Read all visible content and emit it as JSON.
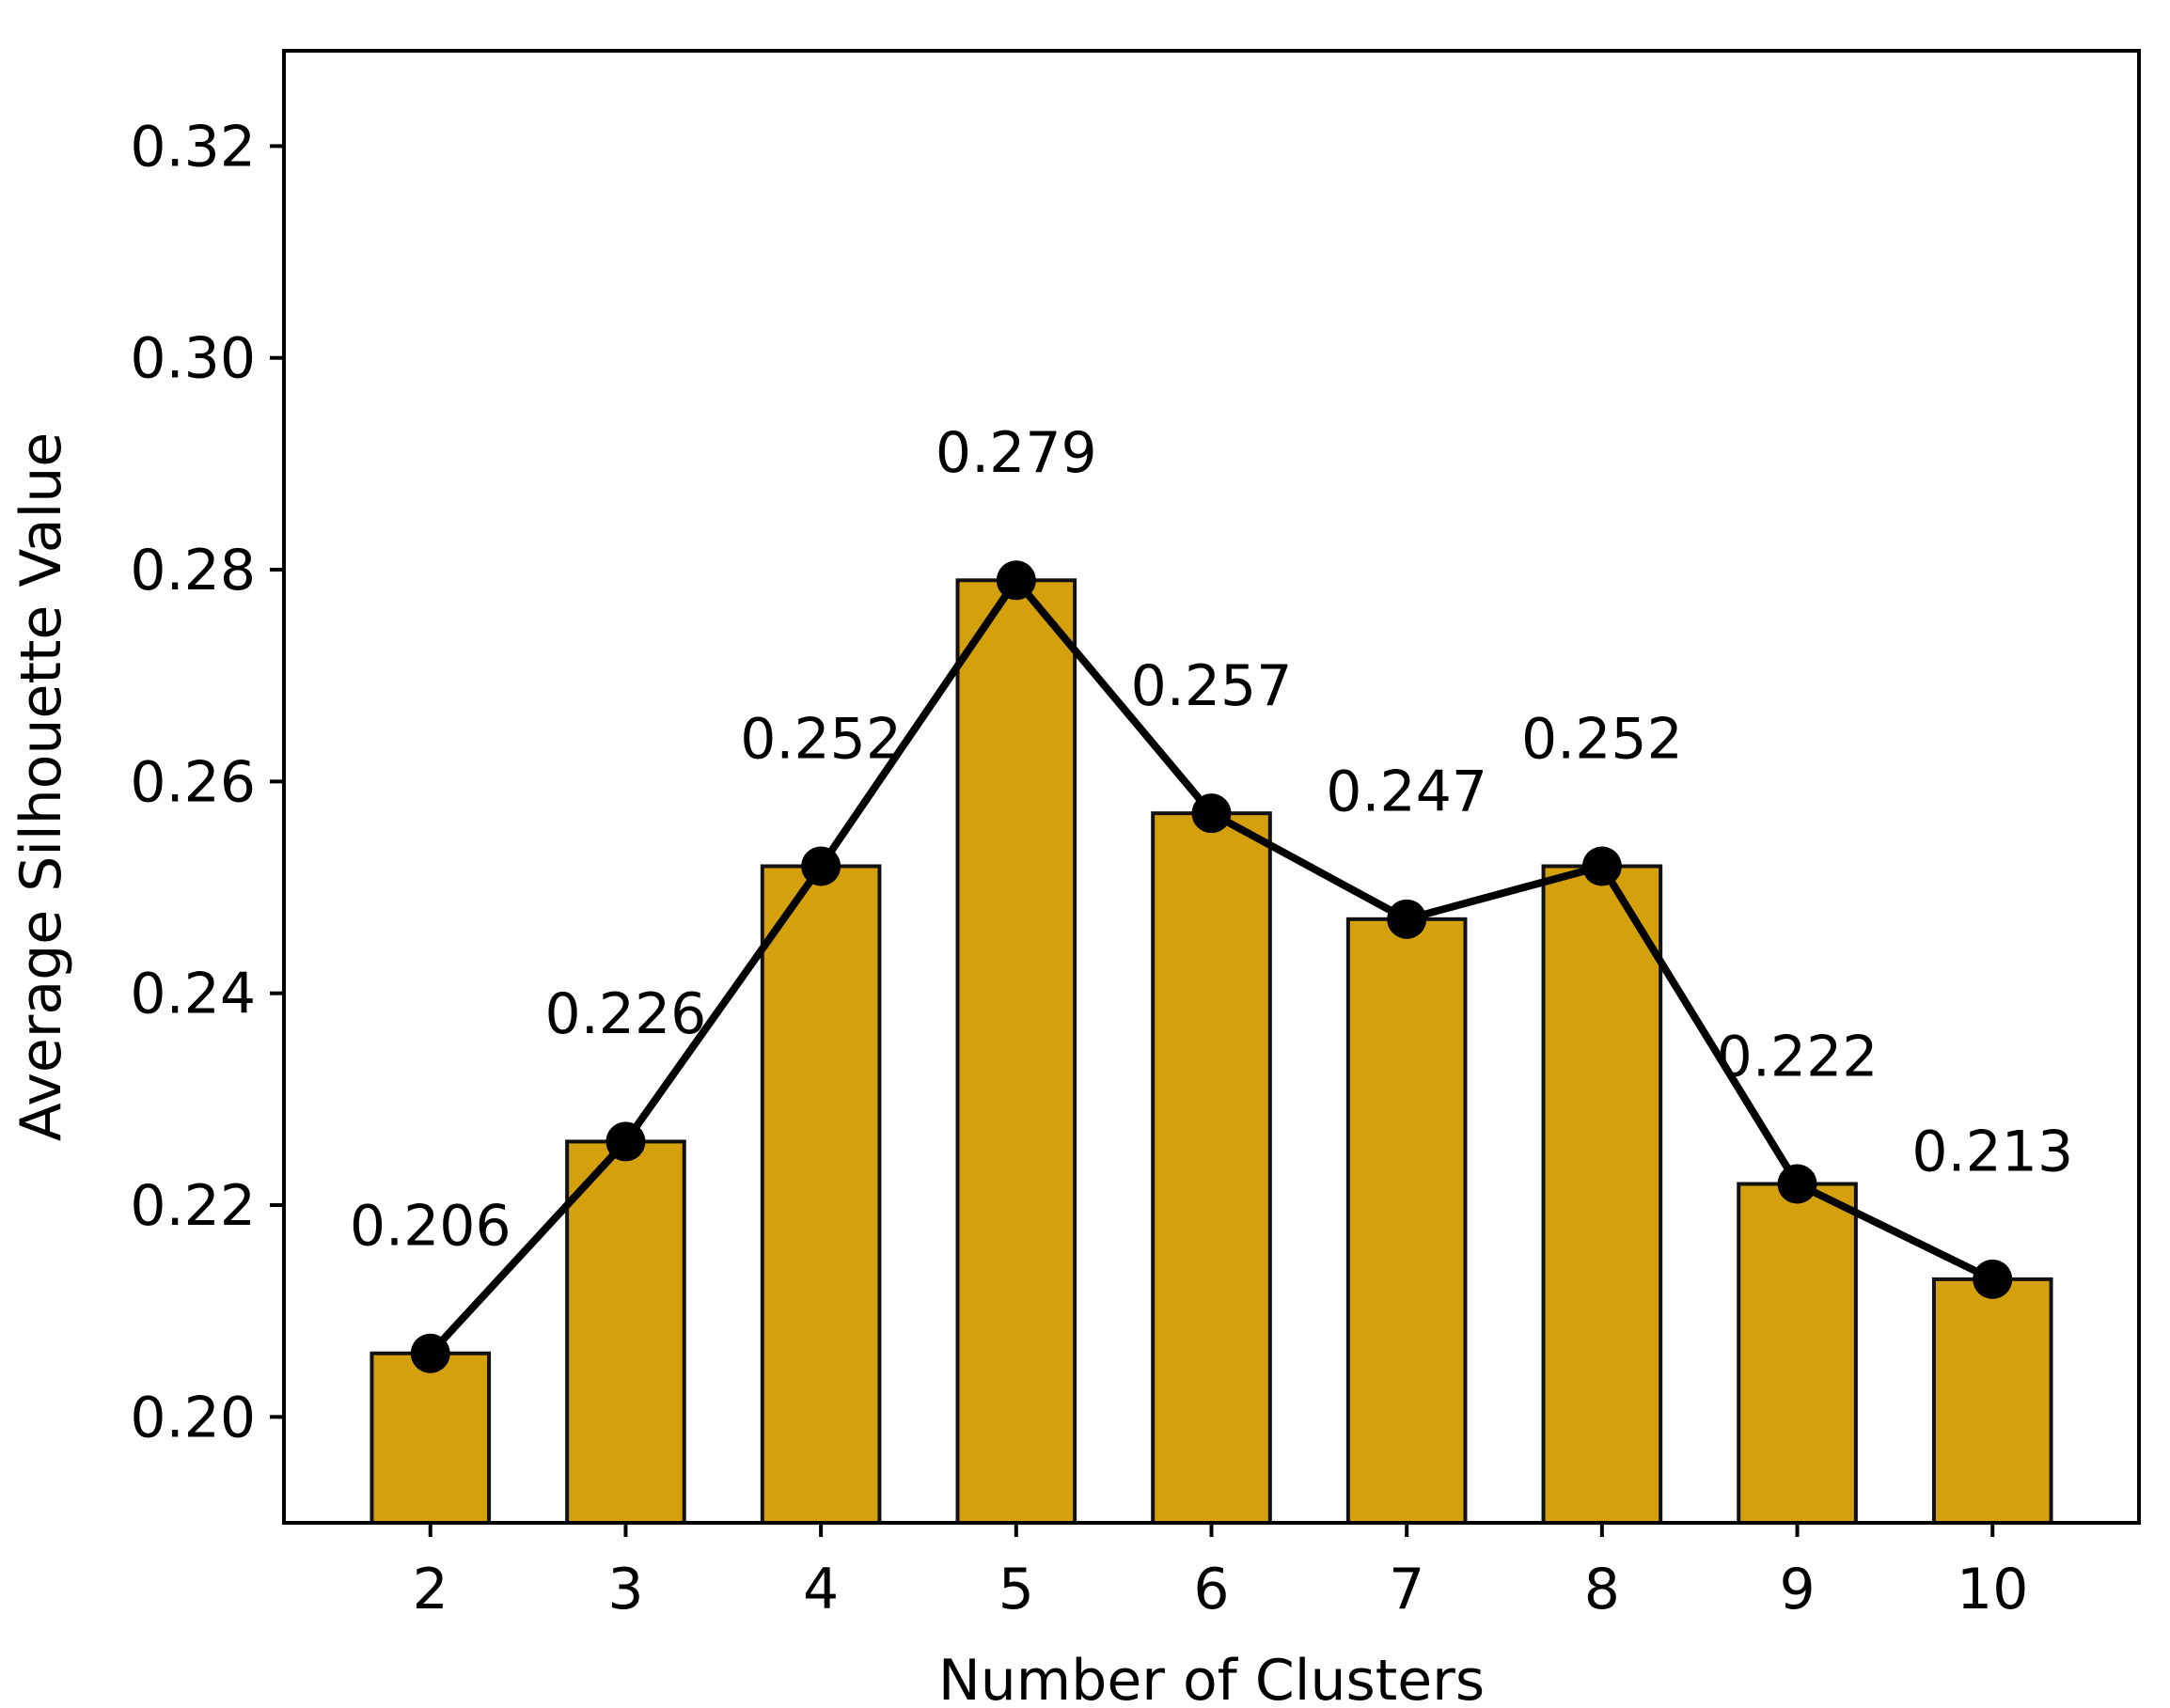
{
  "chart_data": {
    "type": "bar",
    "categories": [
      "2",
      "3",
      "4",
      "5",
      "6",
      "7",
      "8",
      "9",
      "10"
    ],
    "series": [
      {
        "values": [
          0.206,
          0.226,
          0.252,
          0.279,
          0.257,
          0.247,
          0.252,
          0.222,
          0.213
        ],
        "render": "bar+line"
      }
    ],
    "value_labels": [
      "0.206",
      "0.226",
      "0.252",
      "0.279",
      "0.257",
      "0.247",
      "0.252",
      "0.222",
      "0.213"
    ],
    "title": "",
    "xlabel": "Number of Clusters",
    "ylabel": "Average Silhouette Value",
    "ylim": [
      0.19,
      0.329
    ],
    "yticks": [
      0.2,
      0.22,
      0.24,
      0.26,
      0.28,
      0.3,
      0.32
    ],
    "ytick_labels": [
      "0.20",
      "0.22",
      "0.24",
      "0.26",
      "0.28",
      "0.30",
      "0.32"
    ],
    "grid": false,
    "legend": "none",
    "colors": {
      "bar_fill": "#D4A00C",
      "bar_edge": "#111111",
      "line": "#000000",
      "marker": "#000000"
    }
  }
}
